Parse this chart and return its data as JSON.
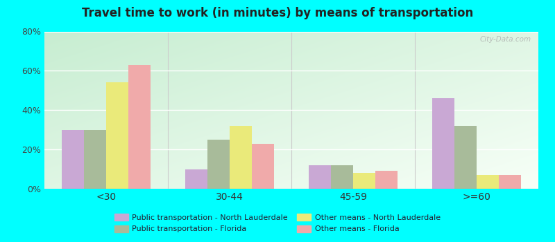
{
  "title": "Travel time to work (in minutes) by means of transportation",
  "categories": [
    "<30",
    "30-44",
    "45-59",
    ">=60"
  ],
  "series": {
    "pub_trans_north_lauderdale": [
      30,
      10,
      12,
      46
    ],
    "pub_trans_florida": [
      30,
      25,
      12,
      32
    ],
    "other_means_north_lauderdale": [
      54,
      32,
      8,
      7
    ],
    "other_means_florida": [
      63,
      23,
      9,
      7
    ]
  },
  "colors": {
    "pub_trans_north_lauderdale": "#c9a8d4",
    "pub_trans_florida": "#a8bb9a",
    "other_means_north_lauderdale": "#eaea7a",
    "other_means_florida": "#f0aaaa"
  },
  "legend_labels": {
    "pub_trans_north_lauderdale": "Public transportation - North Lauderdale",
    "pub_trans_florida": "Public transportation - Florida",
    "other_means_north_lauderdale": "Other means - North Lauderdale",
    "other_means_florida": "Other means - Florida"
  },
  "ylim": [
    0,
    80
  ],
  "yticks": [
    0,
    20,
    40,
    60,
    80
  ],
  "ytick_labels": [
    "0%",
    "20%",
    "40%",
    "60%",
    "80%"
  ],
  "background_color": "#00ffff",
  "title_color": "#222222",
  "watermark": "City-Data.com",
  "bar_width": 0.18
}
